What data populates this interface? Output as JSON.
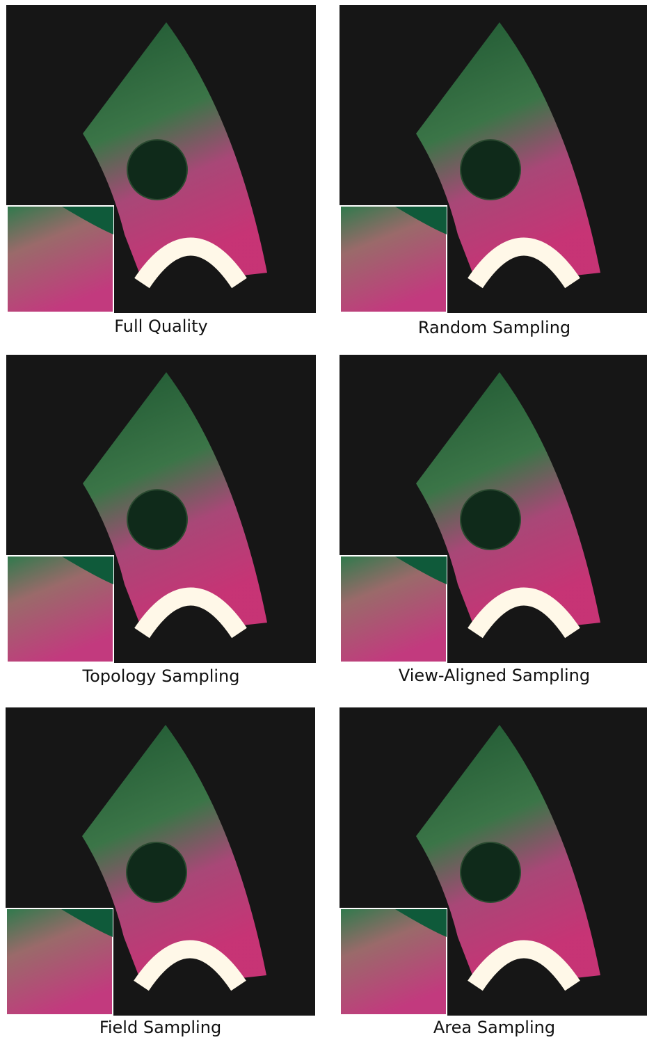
{
  "figure": {
    "panels": [
      {
        "caption": "Full Quality"
      },
      {
        "caption": "Random Sampling"
      },
      {
        "caption": "Topology Sampling"
      },
      {
        "caption": "View-Aligned Sampling"
      },
      {
        "caption": "Field Sampling"
      },
      {
        "caption": "Area Sampling"
      }
    ]
  }
}
